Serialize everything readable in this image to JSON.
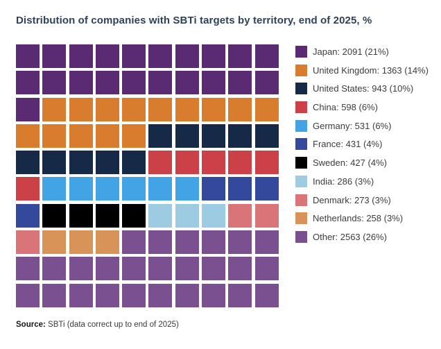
{
  "title": "Distribution of companies with SBTi targets by territory, end of 2025, %",
  "source": {
    "label": "Source:",
    "text": " SBTi (data correct up to end of 2025)"
  },
  "colors": {
    "background": "#ffffff",
    "title_text": "#2e4257",
    "legend_text": "#3c3c3c",
    "grid_gap": "#ffffff"
  },
  "chart_data": {
    "type": "waffle",
    "title": "Distribution of companies with SBTi targets by territory, end of 2025, %",
    "grid": {
      "rows": 10,
      "cols": 10,
      "square_unit_pct": 1,
      "total_squares": 100
    },
    "legend_position": "right",
    "series": [
      {
        "key": "jp",
        "name": "Japan",
        "companies": 2091,
        "pct": 21,
        "squares": 21,
        "color": "#5a2a72",
        "label": "Japan: 2091 (21%)"
      },
      {
        "key": "uk",
        "name": "United Kingdom",
        "companies": 1363,
        "pct": 14,
        "squares": 14,
        "color": "#d87d2d",
        "label": "United Kingdom: 1363 (14%)"
      },
      {
        "key": "us",
        "name": "United States",
        "companies": 943,
        "pct": 10,
        "squares": 10,
        "color": "#162947",
        "label": "United States: 943 (10%)"
      },
      {
        "key": "cn",
        "name": "China",
        "companies": 598,
        "pct": 6,
        "squares": 6,
        "color": "#cc4047",
        "label": "China: 598 (6%)"
      },
      {
        "key": "de",
        "name": "Germany",
        "companies": 531,
        "pct": 6,
        "squares": 6,
        "color": "#42a4e4",
        "label": "Germany: 531 (6%)"
      },
      {
        "key": "fr",
        "name": "France",
        "companies": 431,
        "pct": 4,
        "squares": 4,
        "color": "#34499b",
        "label": "France: 431 (4%)"
      },
      {
        "key": "se",
        "name": "Sweden",
        "companies": 427,
        "pct": 4,
        "squares": 4,
        "color": "#000000",
        "label": "Sweden: 427 (4%)"
      },
      {
        "key": "in",
        "name": "India",
        "companies": 286,
        "pct": 3,
        "squares": 3,
        "color": "#9dcbe1",
        "label": "India: 286 (3%)"
      },
      {
        "key": "dk",
        "name": "Denmark",
        "companies": 273,
        "pct": 3,
        "squares": 3,
        "color": "#d97478",
        "label": "Denmark: 273 (3%)"
      },
      {
        "key": "nl",
        "name": "Netherlands",
        "companies": 258,
        "pct": 3,
        "squares": 3,
        "color": "#d89458",
        "label": "Netherlands: 258 (3%)"
      },
      {
        "key": "ot",
        "name": "Other",
        "companies": 2563,
        "pct": 26,
        "squares": 26,
        "color": "#7b5090",
        "label": "Other: 2563 (26%)"
      }
    ],
    "cells_by_row": [
      [
        "jp",
        "jp",
        "jp",
        "jp",
        "jp",
        "jp",
        "jp",
        "jp",
        "jp",
        "jp"
      ],
      [
        "jp",
        "jp",
        "jp",
        "jp",
        "jp",
        "jp",
        "jp",
        "jp",
        "jp",
        "jp"
      ],
      [
        "jp",
        "uk",
        "uk",
        "uk",
        "uk",
        "uk",
        "uk",
        "uk",
        "uk",
        "uk"
      ],
      [
        "uk",
        "uk",
        "uk",
        "uk",
        "uk",
        "us",
        "us",
        "us",
        "us",
        "us"
      ],
      [
        "us",
        "us",
        "us",
        "us",
        "us",
        "cn",
        "cn",
        "cn",
        "cn",
        "cn"
      ],
      [
        "cn",
        "de",
        "de",
        "de",
        "de",
        "de",
        "de",
        "fr",
        "fr",
        "fr"
      ],
      [
        "fr",
        "se",
        "se",
        "se",
        "se",
        "in",
        "in",
        "in",
        "dk",
        "dk"
      ],
      [
        "dk",
        "nl",
        "nl",
        "nl",
        "ot",
        "ot",
        "ot",
        "ot",
        "ot",
        "ot"
      ],
      [
        "ot",
        "ot",
        "ot",
        "ot",
        "ot",
        "ot",
        "ot",
        "ot",
        "ot",
        "ot"
      ],
      [
        "ot",
        "ot",
        "ot",
        "ot",
        "ot",
        "ot",
        "ot",
        "ot",
        "ot",
        "ot"
      ]
    ]
  }
}
